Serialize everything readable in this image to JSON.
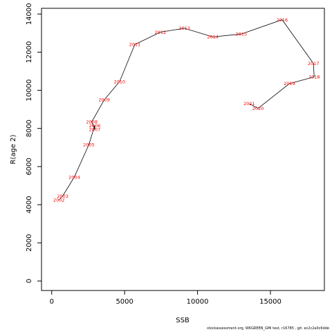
{
  "chart_data": {
    "type": "line",
    "title": "",
    "xlabel": "SSB",
    "ylabel": "R(age 2)",
    "xlim": [
      -700,
      18700
    ],
    "ylim": [
      -500,
      14300
    ],
    "xticks": [
      0,
      5000,
      10000,
      15000
    ],
    "yticks": [
      0,
      2000,
      4000,
      6000,
      8000,
      10000,
      12000,
      14000
    ],
    "grid": false,
    "line_color": "#000000",
    "label_color": "#ff0000",
    "points": [
      {
        "label": "2002",
        "x": 500,
        "y": 4250
      },
      {
        "label": "2003",
        "x": 750,
        "y": 4450
      },
      {
        "label": "2004",
        "x": 1550,
        "y": 5450
      },
      {
        "label": "2005",
        "x": 2550,
        "y": 7150
      },
      {
        "label": "2006",
        "x": 2950,
        "y": 8150
      },
      {
        "label": "2007",
        "x": 2950,
        "y": 7950
      },
      {
        "label": "2008",
        "x": 2750,
        "y": 8350
      },
      {
        "label": "2009",
        "x": 3600,
        "y": 9500
      },
      {
        "label": "2010",
        "x": 4650,
        "y": 10450
      },
      {
        "label": "2011",
        "x": 5700,
        "y": 12400
      },
      {
        "label": "2012",
        "x": 7450,
        "y": 13050
      },
      {
        "label": "2013",
        "x": 9100,
        "y": 13250
      },
      {
        "label": "2014",
        "x": 11050,
        "y": 12800
      },
      {
        "label": "2015",
        "x": 13000,
        "y": 12950
      },
      {
        "label": "2016",
        "x": 15800,
        "y": 13700
      },
      {
        "label": "2017",
        "x": 17950,
        "y": 11400
      },
      {
        "label": "2018",
        "x": 18000,
        "y": 10700
      },
      {
        "label": "2019",
        "x": 16300,
        "y": 10350
      },
      {
        "label": "2020",
        "x": 14150,
        "y": 9050
      },
      {
        "label": "2021",
        "x": 13550,
        "y": 9300
      }
    ]
  },
  "footer": "stockassessment.org, WKGREEN_GMi test, r16785 ,  git: ec2c2a0c6dde"
}
